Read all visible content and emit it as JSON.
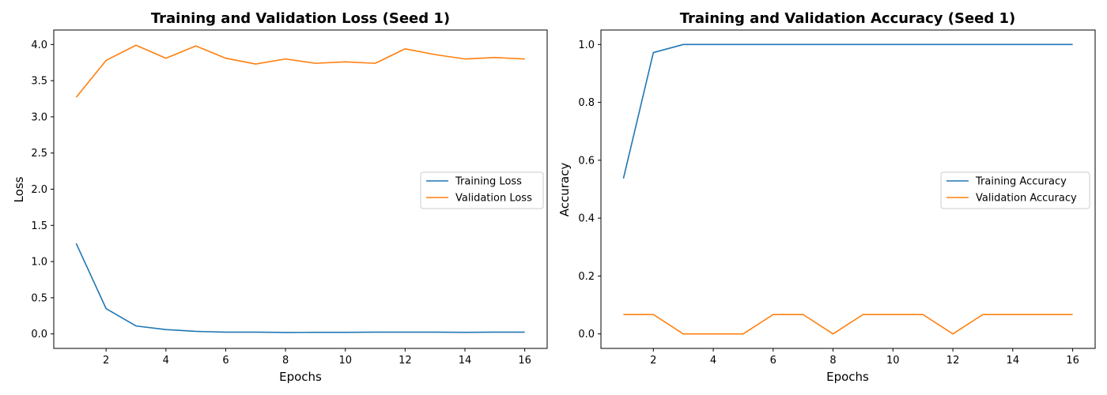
{
  "colors": {
    "training": "#1f77b4",
    "validation": "#ff7f0e"
  },
  "chart_data": [
    {
      "type": "line",
      "title": "Training and Validation Loss (Seed 1)",
      "xlabel": "Epochs",
      "ylabel": "Loss",
      "x": [
        1,
        2,
        3,
        4,
        5,
        6,
        7,
        8,
        9,
        10,
        11,
        12,
        13,
        14,
        15,
        16
      ],
      "xlim": [
        0.25,
        16.75
      ],
      "ylim": [
        -0.2,
        4.2
      ],
      "xticks": [
        2,
        4,
        6,
        8,
        10,
        12,
        14,
        16
      ],
      "xtick_labels": [
        "2",
        "4",
        "6",
        "8",
        "10",
        "12",
        "14",
        "16"
      ],
      "yticks": [
        0,
        0.5,
        1,
        1.5,
        2,
        2.5,
        3,
        3.5,
        4
      ],
      "ytick_labels": [
        "0.0",
        "0.5",
        "1.0",
        "1.5",
        "2.0",
        "2.5",
        "3.0",
        "3.5",
        "4.0"
      ],
      "grid": false,
      "legend_position": "center-right",
      "series": [
        {
          "name": "Training Loss",
          "values": [
            1.25,
            0.35,
            0.11,
            0.06,
            0.035,
            0.025,
            0.025,
            0.02,
            0.022,
            0.022,
            0.025,
            0.025,
            0.025,
            0.022,
            0.024,
            0.025
          ]
        },
        {
          "name": "Validation Loss",
          "values": [
            3.27,
            3.78,
            3.99,
            3.81,
            3.98,
            3.81,
            3.73,
            3.8,
            3.74,
            3.76,
            3.74,
            3.94,
            3.86,
            3.8,
            3.82,
            3.8
          ]
        }
      ]
    },
    {
      "type": "line",
      "title": "Training and Validation Accuracy (Seed 1)",
      "xlabel": "Epochs",
      "ylabel": "Accuracy",
      "x": [
        1,
        2,
        3,
        4,
        5,
        6,
        7,
        8,
        9,
        10,
        11,
        12,
        13,
        14,
        15,
        16
      ],
      "xlim": [
        0.25,
        16.75
      ],
      "ylim": [
        -0.05,
        1.05
      ],
      "xticks": [
        2,
        4,
        6,
        8,
        10,
        12,
        14,
        16
      ],
      "xtick_labels": [
        "2",
        "4",
        "6",
        "8",
        "10",
        "12",
        "14",
        "16"
      ],
      "yticks": [
        0,
        0.2,
        0.4,
        0.6,
        0.8,
        1
      ],
      "ytick_labels": [
        "0.0",
        "0.2",
        "0.4",
        "0.6",
        "0.8",
        "1.0"
      ],
      "grid": false,
      "legend_position": "center-right",
      "series": [
        {
          "name": "Training Accuracy",
          "values": [
            0.537,
            0.972,
            1,
            1,
            1,
            1,
            1,
            1,
            1,
            1,
            1,
            1,
            1,
            1,
            1,
            1
          ]
        },
        {
          "name": "Validation Accuracy",
          "values": [
            0.067,
            0.067,
            0,
            0,
            0,
            0.067,
            0.067,
            0,
            0.067,
            0.067,
            0.067,
            0,
            0.067,
            0.067,
            0.067,
            0.067
          ]
        }
      ]
    }
  ]
}
